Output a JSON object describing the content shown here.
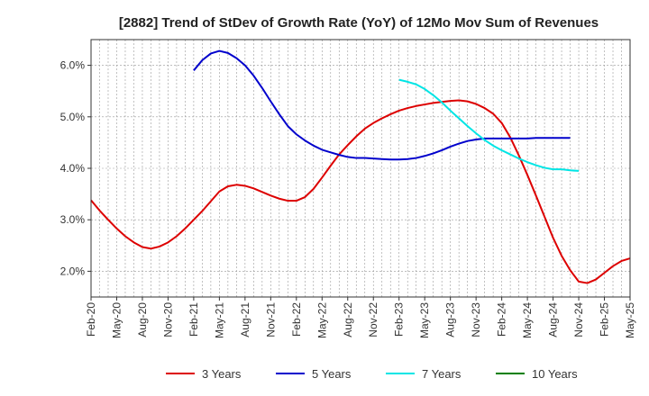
{
  "chart_data": {
    "type": "line",
    "title": "[2882]  Trend of StDev of Growth Rate (YoY) of 12Mo Mov Sum of Revenues",
    "xlabel": "",
    "ylabel": "",
    "ylim": [
      1.5,
      6.5
    ],
    "yticks": [
      2.0,
      3.0,
      4.0,
      5.0,
      6.0
    ],
    "ytick_labels": [
      "2.0%",
      "3.0%",
      "4.0%",
      "5.0%",
      "6.0%"
    ],
    "x_start": "2020-02",
    "x_end": "2025-05",
    "xtick_labels": [
      "Feb-20",
      "May-20",
      "Aug-20",
      "Nov-20",
      "Feb-21",
      "May-21",
      "Aug-21",
      "Nov-21",
      "Feb-22",
      "May-22",
      "Aug-22",
      "Nov-22",
      "Feb-23",
      "May-23",
      "Aug-23",
      "Nov-23",
      "Feb-24",
      "May-24",
      "Aug-24",
      "Nov-24",
      "Feb-25",
      "May-25"
    ],
    "grid": true,
    "legend_position": "bottom",
    "series": [
      {
        "name": "3 Years",
        "color": "#dd0000",
        "start": "2020-02",
        "values": [
          3.38,
          3.18,
          3.0,
          2.83,
          2.68,
          2.56,
          2.47,
          2.44,
          2.48,
          2.56,
          2.68,
          2.83,
          3.0,
          3.17,
          3.36,
          3.55,
          3.65,
          3.68,
          3.66,
          3.61,
          3.54,
          3.47,
          3.41,
          3.37,
          3.37,
          3.44,
          3.6,
          3.82,
          4.05,
          4.27,
          4.45,
          4.62,
          4.77,
          4.88,
          4.97,
          5.05,
          5.12,
          5.17,
          5.21,
          5.24,
          5.27,
          5.29,
          5.31,
          5.32,
          5.3,
          5.25,
          5.17,
          5.06,
          4.88,
          4.6,
          4.25,
          3.87,
          3.47,
          3.06,
          2.65,
          2.3,
          2.02,
          1.8,
          1.77,
          1.84,
          1.97,
          2.1,
          2.2,
          2.25
        ]
      },
      {
        "name": "5 Years",
        "color": "#0000cc",
        "start": "2021-02",
        "values": [
          5.9,
          6.1,
          6.23,
          6.28,
          6.24,
          6.14,
          6.0,
          5.8,
          5.56,
          5.3,
          5.05,
          4.82,
          4.66,
          4.54,
          4.44,
          4.36,
          4.31,
          4.26,
          4.22,
          4.2,
          4.2,
          4.19,
          4.18,
          4.17,
          4.17,
          4.18,
          4.2,
          4.24,
          4.29,
          4.35,
          4.42,
          4.48,
          4.53,
          4.56,
          4.58,
          4.58,
          4.58,
          4.58,
          4.58,
          4.58,
          4.59,
          4.59,
          4.59,
          4.59,
          4.59
        ]
      },
      {
        "name": "7 Years",
        "color": "#00e5e5",
        "start": "2023-02",
        "values": [
          5.72,
          5.68,
          5.63,
          5.54,
          5.42,
          5.28,
          5.12,
          4.97,
          4.82,
          4.68,
          4.55,
          4.44,
          4.35,
          4.27,
          4.19,
          4.12,
          4.06,
          4.01,
          3.98,
          3.98,
          3.96,
          3.95
        ]
      },
      {
        "name": "10 Years",
        "color": "#008000",
        "start": "2025-05",
        "values": []
      }
    ]
  }
}
